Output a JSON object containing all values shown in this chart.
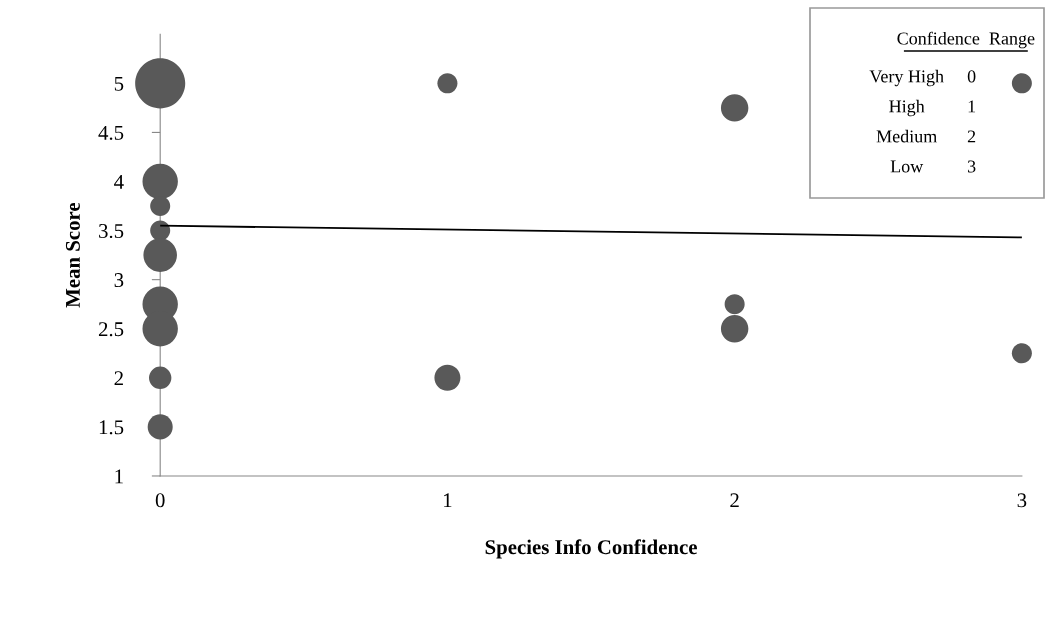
{
  "chart_data": {
    "type": "bubble",
    "xlabel": "Species Info Confidence",
    "ylabel": "Mean Score",
    "xlim": [
      0,
      3
    ],
    "xticks": [
      0,
      1,
      2,
      3
    ],
    "ylim": [
      1,
      5.5
    ],
    "yticks": [
      1,
      1.5,
      2,
      2.5,
      3,
      3.5,
      4,
      4.5,
      5
    ],
    "series": [
      {
        "color": "#595959",
        "x": [
          0,
          0,
          0,
          0,
          0,
          0,
          0,
          0,
          0,
          1,
          1,
          2,
          2,
          2,
          3,
          3
        ],
        "values": [
          5,
          4,
          3.75,
          3.5,
          3.25,
          2.75,
          2.5,
          2,
          1.5,
          5,
          2,
          4.75,
          2.75,
          2.5,
          5,
          2.25
        ],
        "sizes": [
          1,
          0.5,
          0.16,
          0.16,
          0.45,
          0.5,
          0.5,
          0.2,
          0.25,
          0.16,
          0.27,
          0.3,
          0.16,
          0.3,
          0.16,
          0.16
        ]
      },
      {
        "type": "line",
        "color": "#000000",
        "x": [
          0,
          3
        ],
        "values": [
          3.55,
          3.43
        ]
      }
    ],
    "annotations": [
      "Confidence  Range",
      "Very High",
      "0",
      "High",
      "1",
      "Medium",
      "2",
      "Low",
      "3"
    ],
    "grid": false,
    "legend": false
  }
}
